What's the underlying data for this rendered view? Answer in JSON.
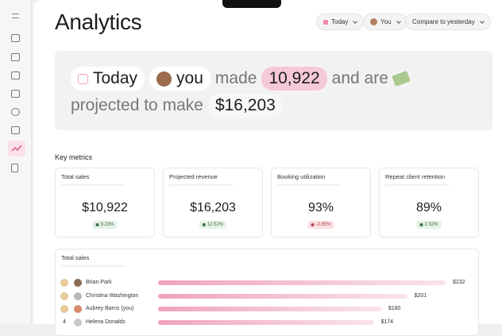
{
  "header": {
    "title": "Analytics",
    "filters": [
      "Today",
      "You",
      "Compare to yesterday"
    ]
  },
  "hero": {
    "date": "Today",
    "person": "you",
    "made": "made",
    "amount": "10,922",
    "and_are": "and are",
    "projected": "projected to make",
    "projection": "$16,203"
  },
  "key_metrics": {
    "title": "Key metrics",
    "cards": [
      {
        "label": "Total sales",
        "value": "$10,922",
        "change": "9.23%",
        "direction": "up"
      },
      {
        "label": "Projected revenue",
        "value": "$16,203",
        "change": "12.52%",
        "direction": "up"
      },
      {
        "label": "Booking utilization",
        "value": "93%",
        "change": "-2.85%",
        "direction": "down"
      },
      {
        "label": "Repeat client retention",
        "value": "89%",
        "change": "2.32%",
        "direction": "up"
      }
    ]
  },
  "total_sales": {
    "title": "Total sales",
    "rows": [
      {
        "name": "Brian Park",
        "value": 232,
        "value_label": "$232"
      },
      {
        "name": "Christina Washington",
        "value": 201,
        "value_label": "$201"
      },
      {
        "name": "Aubrey Barns (you)",
        "value": 180,
        "value_label": "$180"
      },
      {
        "rank": "4",
        "name": "Helena Donalds",
        "value": 174,
        "value_label": "$174"
      }
    ]
  }
}
